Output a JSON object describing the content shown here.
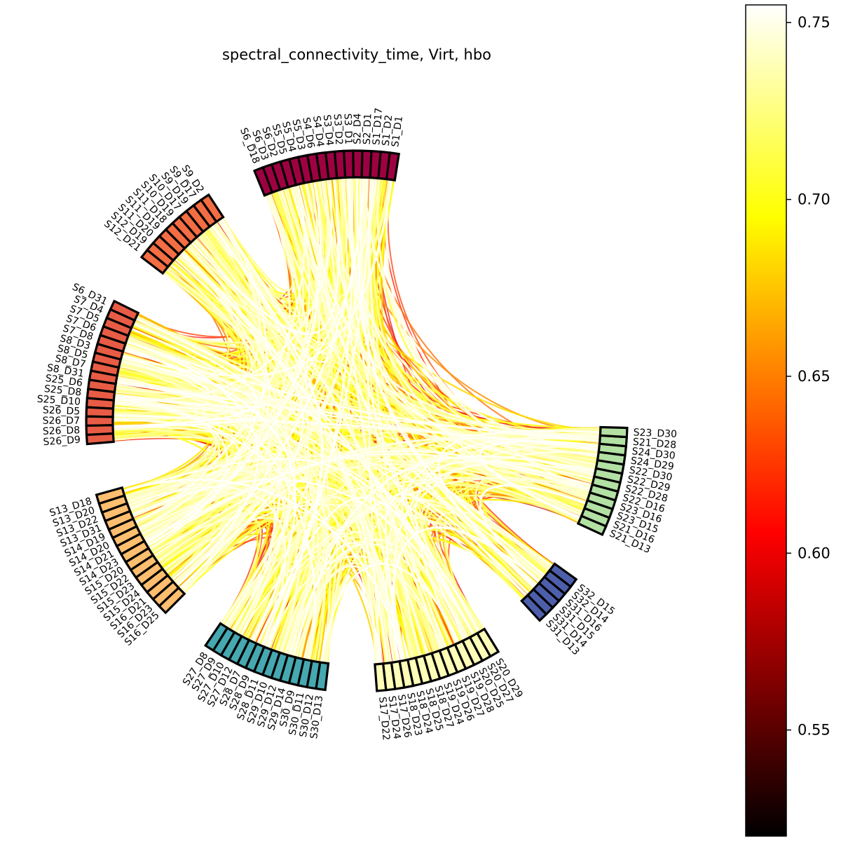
{
  "chart_data": {
    "type": "chord",
    "title": "spectral_connectivity_time, Virt, hbo",
    "node_groups": [
      {
        "color": "#9e0142",
        "nodes": [
          "S1_D1",
          "S1_D2",
          "S1_D17",
          "S2_D1",
          "S2_D4",
          "S3_D1",
          "S3_D2",
          "S3_D4",
          "S4_D4",
          "S4_D6",
          "S5_D3",
          "S5_D4",
          "S5_D5",
          "S6_D2",
          "S6_D3",
          "S6_D18"
        ]
      },
      {
        "color": "#f46d43",
        "nodes": [
          "S9_D2",
          "S9_D17",
          "S9_D19",
          "S10_D17",
          "S10_D19",
          "S11_D18",
          "S11_D19",
          "S11_D20",
          "S12_D19",
          "S12_D21"
        ]
      },
      {
        "color": "#e85c45",
        "nodes": [
          "S6_D31",
          "S7_D4",
          "S7_D5",
          "S7_D6",
          "S7_D8",
          "S8_D3",
          "S8_D5",
          "S8_D7",
          "S8_D31",
          "S25_D6",
          "S25_D8",
          "S25_D10",
          "S26_D5",
          "S26_D7",
          "S26_D8",
          "S26_D9"
        ]
      },
      {
        "color": "#fdbe6f",
        "nodes": [
          "S13_D18",
          "S13_D20",
          "S13_D22",
          "S13_D31",
          "S14_D19",
          "S14_D20",
          "S14_D21",
          "S14_D23",
          "S15_D20",
          "S15_D22",
          "S15_D23",
          "S15_D24",
          "S16_D21",
          "S16_D23",
          "S16_D25"
        ]
      },
      {
        "color": "#46a8b0",
        "nodes": [
          "S27_D8",
          "S27_D9",
          "S27_D10",
          "S27_D12",
          "S28_D7",
          "S28_D9",
          "S28_D11",
          "S29_D10",
          "S29_D12",
          "S29_D14",
          "S30_D9",
          "S30_D11",
          "S30_D12",
          "S30_D13"
        ]
      },
      {
        "color": "#fefeb8",
        "nodes": [
          "S17_D22",
          "S17_D24",
          "S17_D26",
          "S18_D23",
          "S18_D24",
          "S18_D25",
          "S18_D27",
          "S19_D24",
          "S19_D26",
          "S19_D27",
          "S19_D28",
          "S20_D25",
          "S20_D27",
          "S20_D29"
        ]
      },
      {
        "color": "#4d5fab",
        "nodes": [
          "S31_D13",
          "S31_D14",
          "S31_D15",
          "S31_D16",
          "S32_D14",
          "S32_D15"
        ]
      },
      {
        "color": "#b3e0a3",
        "nodes": [
          "S21_D13",
          "S21_D16",
          "S23_D15",
          "S23_D16",
          "S22_D16",
          "S22_D28",
          "S22_D29",
          "S22_D30",
          "S24_D29",
          "S24_D30",
          "S21_D28",
          "S23_D30"
        ]
      }
    ],
    "colorbar": {
      "colormap": "hot",
      "vmin": 0.52,
      "vmax": 0.755,
      "ticks": [
        "0.55",
        "0.60",
        "0.65",
        "0.70",
        "0.75"
      ],
      "tick_values": [
        0.55,
        0.6,
        0.65,
        0.7,
        0.75
      ]
    },
    "connectivity_range": [
      0.58,
      0.755
    ],
    "background": "#ffffff"
  }
}
